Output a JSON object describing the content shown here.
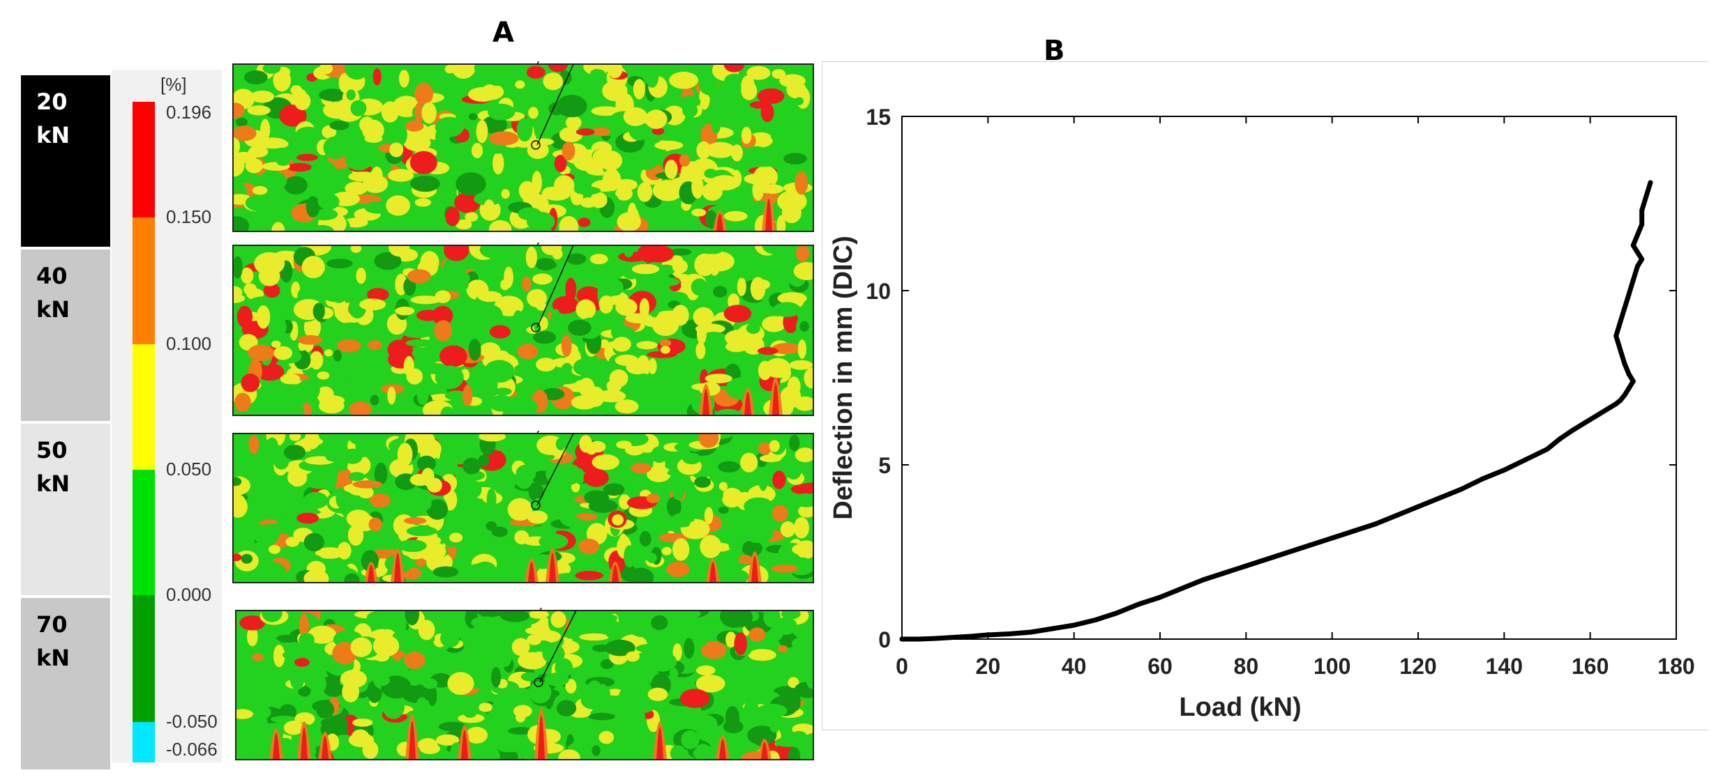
{
  "panel_a": {
    "letter": "A",
    "loads": [
      {
        "value": "20",
        "unit": "kN",
        "bg": "#000000",
        "fg": "#ffffff"
      },
      {
        "value": "40",
        "unit": "kN",
        "bg": "#c8c8c8",
        "fg": "#000000"
      },
      {
        "value": "50",
        "unit": "kN",
        "bg": "#e6e6e6",
        "fg": "#000000"
      },
      {
        "value": "70",
        "unit": "kN",
        "bg": "#c8c8c8",
        "fg": "#000000"
      }
    ],
    "scale": {
      "unit": "[%]",
      "labels": [
        "0.196",
        "0.150",
        "0.100",
        "0.050",
        "0.000",
        "-0.050",
        "-0.066"
      ],
      "colors": [
        "#ff0000",
        "#ff8000",
        "#ffff00",
        "#00e000",
        "#00a000",
        "#00e8ff"
      ]
    },
    "strain_colors": {
      "red": "#ee1c1c",
      "orange": "#ee7a1a",
      "yellow": "#e8ec2a",
      "green": "#22d21e",
      "dark_green": "#139a13"
    }
  },
  "panel_b": {
    "letter": "B"
  },
  "chart_data": {
    "type": "line",
    "title": "",
    "xlabel": "Load (kN)",
    "ylabel": "Deflection in mm (DIC)",
    "xlim": [
      0,
      180
    ],
    "ylim": [
      0,
      15
    ],
    "xticks": [
      "0",
      "20",
      "40",
      "60",
      "80",
      "100",
      "120",
      "140",
      "160",
      "180"
    ],
    "yticks": [
      "0",
      "5",
      "10",
      "15"
    ],
    "grid": false,
    "series": [
      {
        "name": "Deflection",
        "color": "#000000",
        "x": [
          0,
          4,
          8,
          12,
          16,
          20,
          25,
          30,
          35,
          40,
          45,
          50,
          55,
          60,
          65,
          70,
          75,
          80,
          85,
          90,
          95,
          100,
          105,
          110,
          115,
          120,
          125,
          130,
          135,
          140,
          145,
          150,
          153,
          156,
          158,
          160,
          162,
          164,
          166,
          167,
          168,
          169,
          170,
          169,
          168,
          167,
          166,
          167,
          168,
          169,
          170,
          171,
          172,
          171,
          170,
          171,
          172,
          172,
          173,
          174
        ],
        "y": [
          0,
          0,
          0.02,
          0.05,
          0.08,
          0.12,
          0.15,
          0.2,
          0.3,
          0.4,
          0.55,
          0.75,
          1.0,
          1.2,
          1.45,
          1.7,
          1.9,
          2.1,
          2.3,
          2.5,
          2.7,
          2.9,
          3.1,
          3.3,
          3.55,
          3.8,
          4.05,
          4.3,
          4.6,
          4.85,
          5.15,
          5.45,
          5.75,
          6.0,
          6.15,
          6.3,
          6.45,
          6.6,
          6.75,
          6.85,
          7.0,
          7.2,
          7.4,
          7.6,
          7.9,
          8.3,
          8.7,
          9.1,
          9.5,
          9.9,
          10.3,
          10.7,
          10.9,
          11.1,
          11.3,
          11.6,
          11.9,
          12.3,
          12.7,
          13.1
        ]
      }
    ]
  }
}
